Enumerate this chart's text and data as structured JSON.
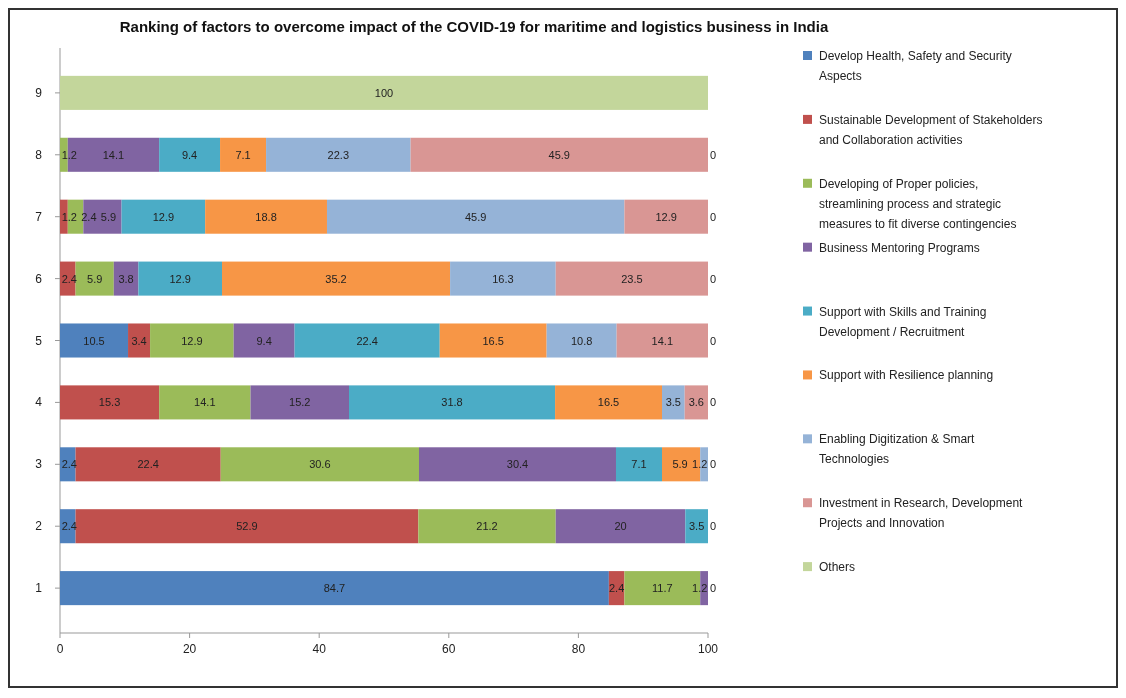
{
  "chart_data": {
    "type": "bar",
    "orientation": "horizontal",
    "stacked": true,
    "title": "Ranking of factors to overcome impact of the COVID-19 for maritime and logistics business in India",
    "categories": [
      "9",
      "8",
      "7",
      "6",
      "5",
      "4",
      "3",
      "2",
      "1"
    ],
    "xlim": [
      0,
      100
    ],
    "xticks": [
      0,
      20,
      40,
      60,
      80,
      100
    ],
    "grid": false,
    "legend": "right",
    "series": [
      {
        "name": "Develop Health, Safety and Security Aspects",
        "color": "#4f81bd",
        "values": [
          0,
          0,
          0,
          0,
          10.5,
          0,
          2.4,
          2.4,
          84.7
        ],
        "value_labels": [
          null,
          null,
          null,
          null,
          "10.5",
          null,
          "2.4",
          "2.4",
          "84.7"
        ]
      },
      {
        "name": "Sustainable Development of Stakeholders and Collaboration activities",
        "color": "#c0504d",
        "values": [
          0,
          0,
          1.2,
          2.4,
          3.4,
          15.3,
          22.4,
          52.9,
          2.4
        ],
        "value_labels": [
          null,
          null,
          "1.2",
          "2.4",
          "3.4",
          "15.3",
          "22.4",
          "52.9",
          "2.4"
        ]
      },
      {
        "name": "Developing of Proper policies, streamlining process and strategic measures to fit diverse contingencies",
        "color": "#9bbb59",
        "values": [
          0,
          1.2,
          2.4,
          5.9,
          12.9,
          14.1,
          30.6,
          21.2,
          11.7
        ],
        "value_labels": [
          null,
          "1.2",
          "2.4",
          "5.9",
          "12.9",
          "14.1",
          "30.6",
          "21.2",
          "11.7"
        ]
      },
      {
        "name": "Business Mentoring Programs",
        "color": "#8064a2",
        "values": [
          0,
          14.1,
          5.9,
          3.8,
          9.4,
          15.2,
          30.4,
          20,
          1.2
        ],
        "value_labels": [
          null,
          "14.1",
          "5.9",
          "3.8",
          "9.4",
          "15.2",
          "30.4",
          "20",
          "1.2"
        ]
      },
      {
        "name": "Support with Skills and Training Development / Recruitment",
        "color": "#4bacc6",
        "values": [
          0,
          9.4,
          12.9,
          12.9,
          22.4,
          31.8,
          7.1,
          3.5,
          0
        ],
        "value_labels": [
          null,
          "9.4",
          "12.9",
          "12.9",
          "22.4",
          "31.8",
          "7.1",
          "3.5",
          null
        ]
      },
      {
        "name": "Support with Resilience planning",
        "color": "#f79646",
        "values": [
          0,
          7.1,
          18.8,
          35.2,
          16.5,
          16.5,
          5.9,
          0,
          0
        ],
        "value_labels": [
          null,
          "7.1",
          "18.8",
          "35.2",
          "16.5",
          "16.5",
          "5.9",
          null,
          null
        ]
      },
      {
        "name": "Enabling Digitization  & Smart Technologies",
        "color": "#95b3d7",
        "values": [
          0,
          22.3,
          45.9,
          16.3,
          10.8,
          3.5,
          1.2,
          0,
          0
        ],
        "value_labels": [
          null,
          "22.3",
          "45.9",
          "16.3",
          "10.8",
          "3.5",
          "1.2",
          null,
          null
        ]
      },
      {
        "name": "Investment in Research, Development Projects and Innovation",
        "color": "#d99694",
        "values": [
          0,
          45.9,
          12.9,
          23.5,
          14.1,
          3.6,
          0,
          0,
          0
        ],
        "value_labels": [
          null,
          "45.9",
          "12.9",
          "23.5",
          "14.1",
          "3.6",
          null,
          null,
          null
        ]
      },
      {
        "name": "Others",
        "color": "#c3d69b",
        "values": [
          100,
          0,
          0,
          0,
          0,
          0,
          0,
          0,
          0
        ],
        "value_labels": [
          "100",
          "0",
          "0",
          "0",
          "0",
          "0",
          "0",
          "0",
          "0"
        ]
      }
    ]
  }
}
